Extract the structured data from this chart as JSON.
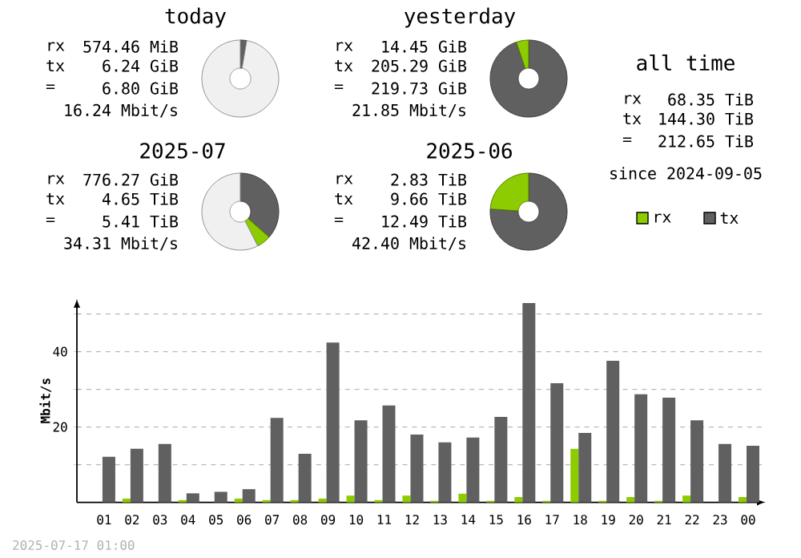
{
  "chart_data": [
    {
      "type": "donut",
      "title": "today",
      "categories": [
        null,
        null,
        null
      ],
      "values": [
        2.7,
        null,
        97.3
      ],
      "colors": [
        "#606060",
        "#8ccc00",
        "#f0f0f0"
      ],
      "annotations": [
        "rx",
        "574.46 MiB",
        "tx",
        "6.24 GiB",
        "=",
        "6.80 GiB",
        "16.24 Mbit/s"
      ]
    },
    {
      "type": "donut",
      "title": "yesterday",
      "categories": [
        null,
        null
      ],
      "values": [
        94.8,
        5.2
      ],
      "colors": [
        "#606060",
        "#8ccc00"
      ],
      "annotations": [
        "rx",
        "14.45 GiB",
        "tx",
        "205.29 GiB",
        "=",
        "219.73 GiB",
        "21.85 Mbit/s"
      ]
    },
    {
      "type": "other",
      "title": "all time",
      "annotations": [
        "rx",
        "68.35 TiB",
        "tx",
        "144.30 TiB",
        "=",
        "212.65 TiB",
        "since 2024-09-05"
      ]
    },
    {
      "type": "donut",
      "title": "2025-07",
      "categories": [
        null,
        null,
        null
      ],
      "values": [
        36.5,
        6,
        57.5
      ],
      "colors": [
        "#606060",
        "#8ccc00",
        "#f0f0f0"
      ],
      "annotations": [
        "rx",
        "776.27 GiB",
        "tx",
        "4.65 TiB",
        "=",
        "5.41 TiB",
        "34.31 Mbit/s"
      ]
    },
    {
      "type": "donut",
      "title": "2025-06",
      "categories": [
        null,
        null
      ],
      "values": [
        76.1,
        23.9
      ],
      "colors": [
        "#606060",
        "#8ccc00"
      ],
      "annotations": [
        "rx",
        "2.83 TiB",
        "tx",
        "9.66 TiB",
        "=",
        "12.49 TiB",
        "42.40 Mbit/s"
      ]
    },
    {
      "type": "bar",
      "categories": [
        "01",
        "02",
        "03",
        "04",
        "05",
        "06",
        "07",
        "08",
        "09",
        "10",
        "11",
        "12",
        "13",
        "14",
        "15",
        "16",
        "17",
        "18",
        "19",
        "20",
        "21",
        "22",
        "23",
        "00"
      ],
      "series": [
        {
          "name": "rx",
          "color": "#8ccc00",
          "values": [
            0,
            1.0,
            0,
            0.6,
            0,
            1.0,
            0.6,
            0.6,
            1.0,
            1.8,
            0.6,
            1.8,
            0.4,
            2.3,
            0.4,
            1.4,
            0.4,
            14.2,
            0.4,
            1.4,
            0.4,
            1.8,
            0,
            1.4
          ]
        },
        {
          "name": "tx",
          "color": "#606060",
          "values": [
            12.1,
            14.2,
            15.5,
            2.4,
            2.8,
            3.5,
            22.4,
            12.9,
            42.4,
            21.8,
            25.7,
            18.0,
            15.9,
            17.2,
            22.7,
            52.9,
            31.6,
            18.4,
            37.6,
            28.7,
            27.8,
            21.8,
            15.5,
            15.0
          ]
        }
      ],
      "ylabel": "Mbit/s",
      "ylim": [
        0,
        54
      ],
      "yticks": [
        {
          "value": 10,
          "label": null
        },
        20,
        {
          "value": 30,
          "label": null
        },
        40,
        {
          "value": 50,
          "label": null
        }
      ],
      "grid": "y",
      "legend": "top right",
      "annotations": [
        "2025-07-17 01:00"
      ]
    }
  ]
}
